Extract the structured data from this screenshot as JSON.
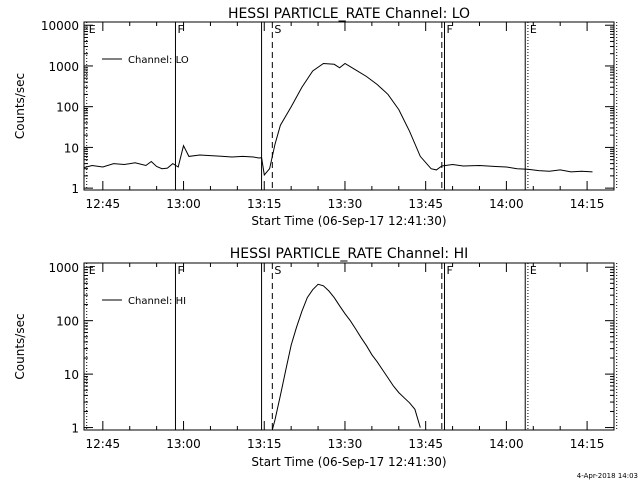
{
  "timestamp": "4-Apr-2018 14:03",
  "colors": {
    "foreground": "#000000",
    "background": "#ffffff"
  },
  "chart_data": [
    {
      "type": "line",
      "title": "HESSI PARTICLE_RATE Channel: LO",
      "xlabel": "Start Time (06-Sep-17 12:41:30)",
      "ylabel": "Counts/sec",
      "yscale": "log",
      "xlim": [
        "12:41:30",
        "14:20:00"
      ],
      "ylim": [
        0.9,
        12000
      ],
      "xticks": [
        "12:45",
        "13:00",
        "13:15",
        "13:30",
        "13:45",
        "14:00",
        "14:15"
      ],
      "yticks": [
        "1",
        "10",
        "100",
        "1000",
        "10000"
      ],
      "legend": {
        "position": "top-left",
        "entries": [
          "Channel: LO"
        ]
      },
      "grid": false,
      "markers": [
        {
          "time": "12:42:00",
          "label": "E",
          "style": "dotted"
        },
        {
          "time": "12:58:30",
          "label": "F",
          "style": "solid"
        },
        {
          "time": "13:14:30",
          "label": "",
          "style": "solid"
        },
        {
          "time": "13:16:30",
          "label": "S",
          "style": "dashed"
        },
        {
          "time": "13:48:00",
          "label": "",
          "style": "dashed"
        },
        {
          "time": "13:48:30",
          "label": "F",
          "style": "solid"
        },
        {
          "time": "14:03:30",
          "label": "",
          "style": "solid"
        },
        {
          "time": "14:04:00",
          "label": "E",
          "style": "dotted"
        },
        {
          "time": "14:20:30",
          "label": "",
          "style": "dotted"
        }
      ],
      "series": [
        {
          "name": "Channel: LO",
          "x": [
            "12:41:30",
            "12:43",
            "12:45",
            "12:47",
            "12:49",
            "12:51",
            "12:53",
            "12:54",
            "12:55",
            "12:56",
            "12:57",
            "12:58",
            "12:59",
            "13:00",
            "13:01",
            "13:03",
            "13:05",
            "13:07",
            "13:09",
            "13:11",
            "13:13",
            "13:14",
            "13:14:30",
            "13:15",
            "13:16",
            "13:17",
            "13:18",
            "13:20",
            "13:22",
            "13:24",
            "13:26",
            "13:28",
            "13:29",
            "13:30",
            "13:32",
            "13:34",
            "13:36",
            "13:38",
            "13:40",
            "13:42",
            "13:44",
            "13:46",
            "13:47",
            "13:48",
            "13:50",
            "13:52",
            "13:55",
            "13:58",
            "14:00",
            "14:02",
            "14:04",
            "14:06",
            "14:08",
            "14:10",
            "14:12",
            "14:14",
            "14:16"
          ],
          "y": [
            3.2,
            3.6,
            3.3,
            4.0,
            3.8,
            4.2,
            3.6,
            4.5,
            3.4,
            3.0,
            3.1,
            4.0,
            3.3,
            11,
            6,
            6.5,
            6.3,
            6.1,
            5.8,
            6,
            5.8,
            5.5,
            5.6,
            2.1,
            3,
            12,
            35,
            100,
            300,
            750,
            1150,
            1100,
            900,
            1150,
            800,
            550,
            350,
            200,
            85,
            25,
            6,
            3,
            2.8,
            3.5,
            3.8,
            3.5,
            3.6,
            3.4,
            3.3,
            3.0,
            2.9,
            2.7,
            2.6,
            2.8,
            2.5,
            2.6,
            2.5
          ]
        }
      ]
    },
    {
      "type": "line",
      "title": "HESSI PARTICLE_RATE Channel: HI",
      "xlabel": "Start Time (06-Sep-17 12:41:30)",
      "ylabel": "Counts/sec",
      "yscale": "log",
      "xlim": [
        "12:41:30",
        "14:20:00"
      ],
      "ylim": [
        0.9,
        1200
      ],
      "xticks": [
        "12:45",
        "13:00",
        "13:15",
        "13:30",
        "13:45",
        "14:00",
        "14:15"
      ],
      "yticks": [
        "1",
        "10",
        "100",
        "1000"
      ],
      "legend": {
        "position": "top-left",
        "entries": [
          "Channel: HI"
        ]
      },
      "grid": false,
      "markers": [
        {
          "time": "12:42:00",
          "label": "E",
          "style": "dotted"
        },
        {
          "time": "12:58:30",
          "label": "F",
          "style": "solid"
        },
        {
          "time": "13:14:30",
          "label": "",
          "style": "solid"
        },
        {
          "time": "13:16:30",
          "label": "S",
          "style": "dashed"
        },
        {
          "time": "13:48:00",
          "label": "",
          "style": "dashed"
        },
        {
          "time": "13:48:30",
          "label": "F",
          "style": "solid"
        },
        {
          "time": "14:03:30",
          "label": "",
          "style": "solid"
        },
        {
          "time": "14:04:00",
          "label": "E",
          "style": "dotted"
        },
        {
          "time": "14:20:30",
          "label": "",
          "style": "dotted"
        }
      ],
      "series": [
        {
          "name": "Channel: HI",
          "x": [
            "13:16:30",
            "13:17",
            "13:18",
            "13:19",
            "13:20",
            "13:21",
            "13:22",
            "13:23",
            "13:24",
            "13:25",
            "13:26",
            "13:27",
            "13:28",
            "13:29",
            "13:30",
            "13:31",
            "13:32",
            "13:33",
            "13:34",
            "13:35",
            "13:36",
            "13:37",
            "13:38",
            "13:39",
            "13:40",
            "13:41",
            "13:42",
            "13:43",
            "13:44"
          ],
          "y": [
            0.9,
            1.4,
            4,
            12,
            35,
            75,
            150,
            270,
            380,
            480,
            450,
            360,
            270,
            190,
            135,
            100,
            70,
            48,
            34,
            23,
            17,
            12,
            8.5,
            6,
            4.5,
            3.6,
            2.9,
            2.2,
            1.0
          ]
        }
      ]
    }
  ]
}
